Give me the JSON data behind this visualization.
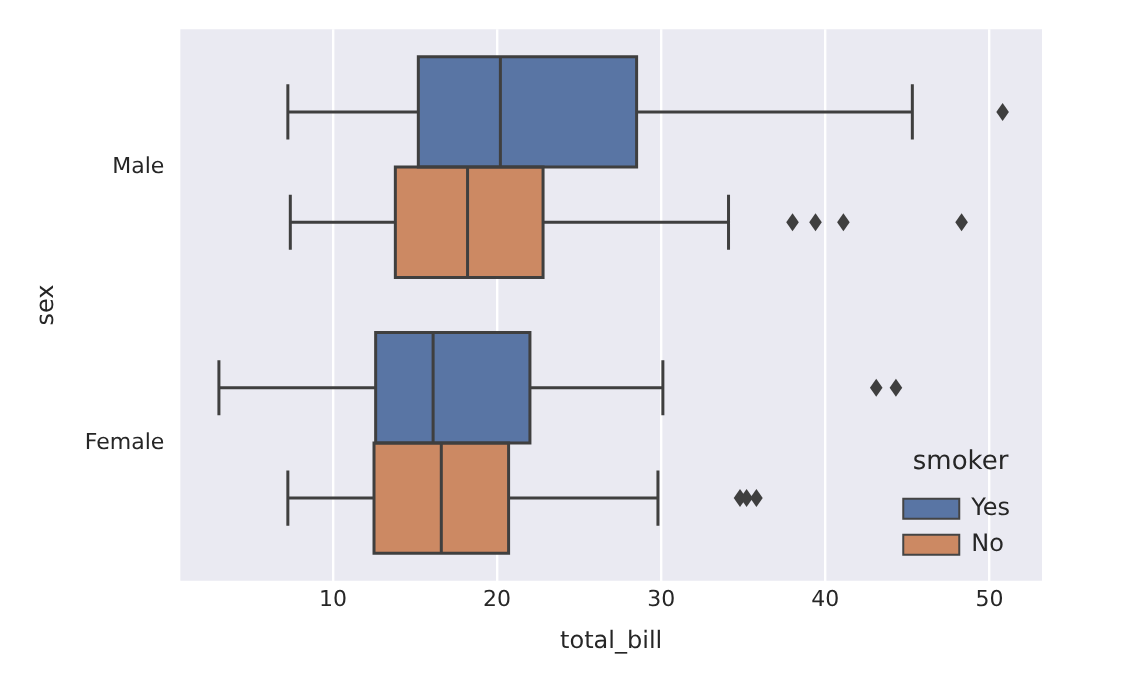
{
  "chart_data": {
    "type": "box",
    "orientation": "horizontal",
    "categories": [
      "Male",
      "Female"
    ],
    "xlabel": "total_bill",
    "ylabel": "sex",
    "legend_title": "smoker",
    "legend": "bottom right",
    "grid": "x",
    "marker": "diamond",
    "xlim": [
      0.7,
      53.2
    ],
    "xticks": [
      10,
      20,
      30,
      40,
      50
    ],
    "series": [
      {
        "name": "Yes",
        "color": "#5975a4",
        "boxes": [
          {
            "low": 7.25,
            "q1": 15.2,
            "median": 20.2,
            "q3": 28.5,
            "high": 45.3,
            "outliers": [
              50.8
            ]
          },
          {
            "low": 3.05,
            "q1": 12.6,
            "median": 16.1,
            "q3": 22.0,
            "high": 30.1,
            "outliers": [
              43.1,
              44.3
            ]
          }
        ]
      },
      {
        "name": "No",
        "color": "#cc8963",
        "boxes": [
          {
            "low": 7.4,
            "q1": 13.8,
            "median": 18.2,
            "q3": 22.8,
            "high": 34.1,
            "outliers": [
              38.0,
              39.4,
              41.1,
              48.3
            ]
          },
          {
            "low": 7.25,
            "q1": 12.5,
            "median": 16.6,
            "q3": 20.7,
            "high": 29.8,
            "outliers": [
              34.8,
              35.2,
              35.8
            ]
          }
        ]
      }
    ]
  }
}
